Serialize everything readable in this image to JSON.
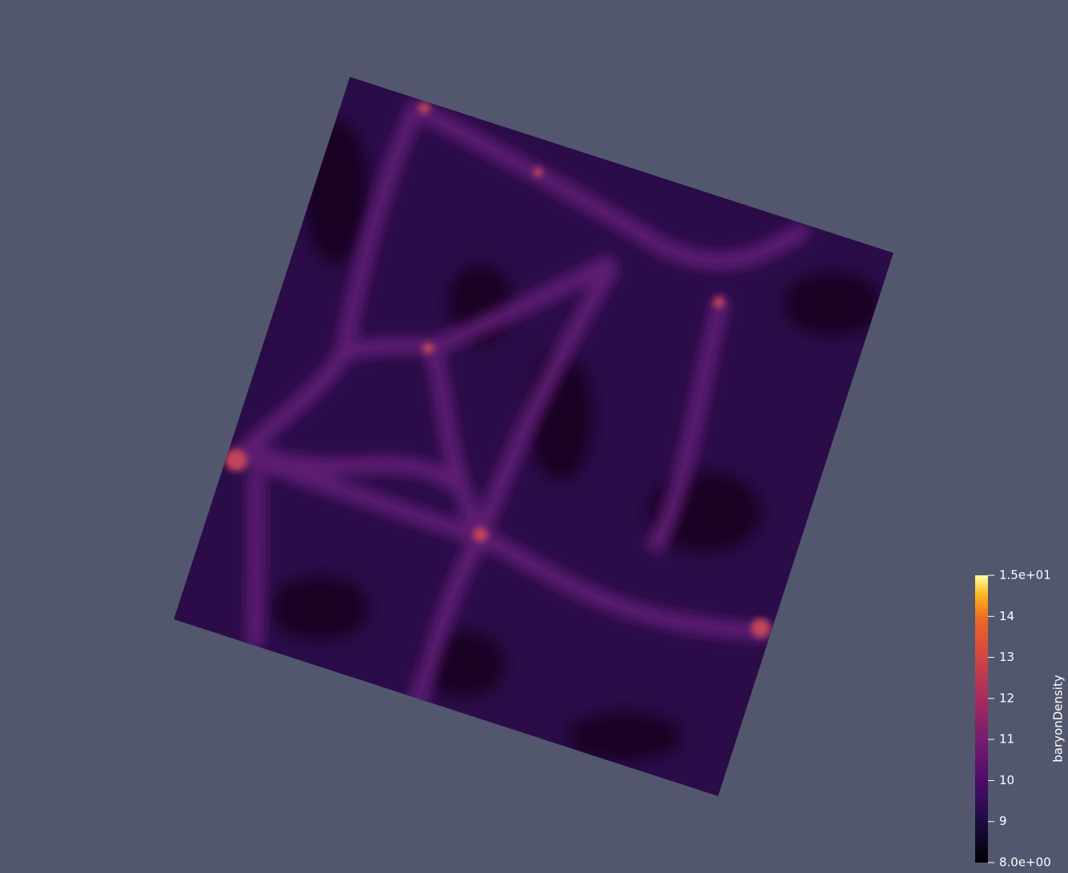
{
  "colorbar": {
    "title": "baryonDensity",
    "range": [
      8,
      15
    ],
    "ticks": [
      {
        "value": 8,
        "label": "8.0e+00"
      },
      9,
      10,
      11,
      12,
      13,
      14,
      {
        "value": 15,
        "label": "1.5e+01"
      }
    ]
  }
}
